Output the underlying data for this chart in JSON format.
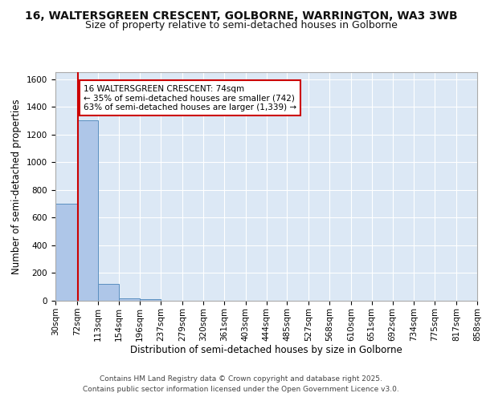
{
  "title_line1": "16, WALTERSGREEN CRESCENT, GOLBORNE, WARRINGTON, WA3 3WB",
  "title_line2": "Size of property relative to semi-detached houses in Golborne",
  "xlabel": "Distribution of semi-detached houses by size in Golborne",
  "ylabel": "Number of semi-detached properties",
  "bin_labels": [
    "30sqm",
    "72sqm",
    "113sqm",
    "154sqm",
    "196sqm",
    "237sqm",
    "279sqm",
    "320sqm",
    "361sqm",
    "403sqm",
    "444sqm",
    "485sqm",
    "527sqm",
    "568sqm",
    "610sqm",
    "651sqm",
    "692sqm",
    "734sqm",
    "775sqm",
    "817sqm",
    "858sqm"
  ],
  "bin_edges": [
    30,
    72,
    113,
    154,
    196,
    237,
    279,
    320,
    361,
    403,
    444,
    485,
    527,
    568,
    610,
    651,
    692,
    734,
    775,
    817,
    858
  ],
  "bar_values": [
    700,
    1300,
    120,
    15,
    10,
    0,
    0,
    0,
    0,
    0,
    0,
    0,
    0,
    0,
    0,
    0,
    0,
    0,
    0,
    0
  ],
  "bar_color": "#aec6e8",
  "bar_edge_color": "#5a8fc0",
  "property_size": 74,
  "red_line_color": "#cc0000",
  "annotation_text": "16 WALTERSGREEN CRESCENT: 74sqm\n← 35% of semi-detached houses are smaller (742)\n63% of semi-detached houses are larger (1,339) →",
  "annotation_box_color": "#ffffff",
  "annotation_box_edge": "#cc0000",
  "ylim": [
    0,
    1650
  ],
  "yticks": [
    0,
    200,
    400,
    600,
    800,
    1000,
    1200,
    1400,
    1600
  ],
  "background_color": "#dce8f5",
  "grid_color": "#ffffff",
  "fig_background": "#ffffff",
  "footer_line1": "Contains HM Land Registry data © Crown copyright and database right 2025.",
  "footer_line2": "Contains public sector information licensed under the Open Government Licence v3.0.",
  "title_fontsize": 10,
  "subtitle_fontsize": 9,
  "axis_label_fontsize": 8.5,
  "tick_fontsize": 7.5,
  "annotation_fontsize": 7.5,
  "footer_fontsize": 6.5
}
